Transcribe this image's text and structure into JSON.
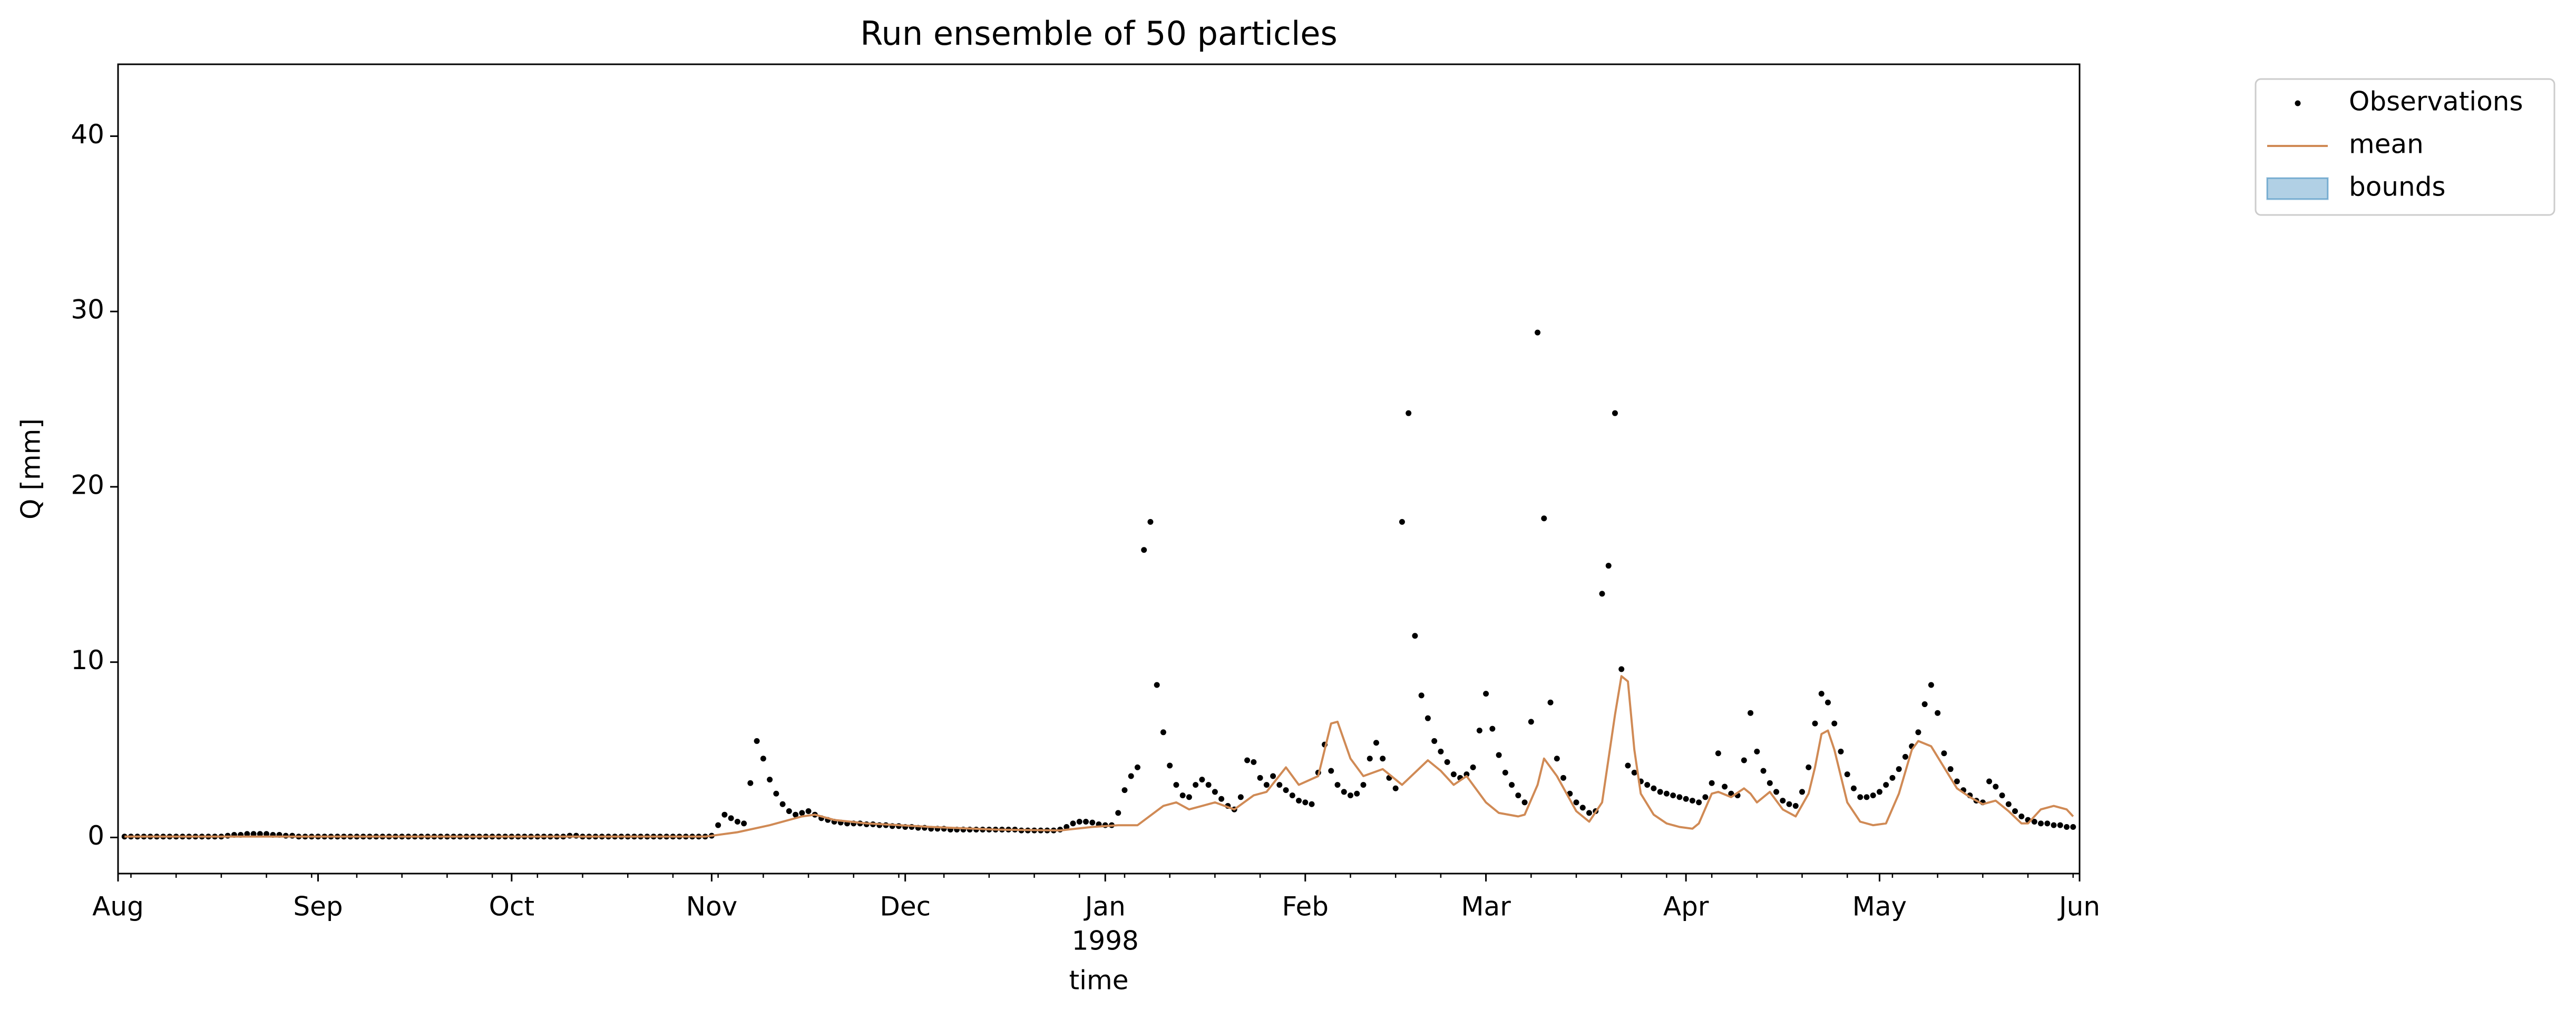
{
  "chart_data": {
    "type": "line",
    "title": "Run ensemble of 50 particles",
    "xlabel": "time",
    "ylabel": "Q [mm]",
    "x_year": "1998",
    "legend": "outside upper right",
    "xlim": [
      "1997-08-01",
      "1998-06-01"
    ],
    "xticks": [
      {
        "value": "1997-08-01",
        "label": "Aug"
      },
      {
        "value": "1997-09-01",
        "label": "Sep"
      },
      {
        "value": "1997-10-01",
        "label": "Oct"
      },
      {
        "value": "1997-11-01",
        "label": "Nov"
      },
      {
        "value": "1997-12-01",
        "label": "Dec"
      },
      {
        "value": "1998-01-01",
        "label": "Jan"
      },
      {
        "value": "1998-02-01",
        "label": "Feb"
      },
      {
        "value": "1998-03-01",
        "label": "Mar"
      },
      {
        "value": "1998-04-01",
        "label": "Apr"
      },
      {
        "value": "1998-05-01",
        "label": "May"
      },
      {
        "value": "1998-06-01",
        "label": "Jun"
      }
    ],
    "xminorticks": [
      "1997-08-03",
      "1997-08-10",
      "1997-08-17",
      "1997-08-24",
      "1997-08-31",
      "1997-09-07",
      "1997-09-14",
      "1997-09-21",
      "1997-09-28",
      "1997-10-05",
      "1997-10-12",
      "1997-10-19",
      "1997-10-26",
      "1997-11-02",
      "1997-11-09",
      "1997-11-16",
      "1997-11-23",
      "1997-11-30",
      "1997-12-07",
      "1997-12-14",
      "1997-12-21",
      "1997-12-28",
      "1998-01-04",
      "1998-01-11",
      "1998-01-18",
      "1998-01-25",
      "1998-02-01",
      "1998-02-08",
      "1998-02-15",
      "1998-02-22",
      "1998-03-01",
      "1998-03-08",
      "1998-03-15",
      "1998-03-22",
      "1998-03-29",
      "1998-04-05",
      "1998-04-12",
      "1998-04-19",
      "1998-04-26",
      "1998-05-03",
      "1998-05-10",
      "1998-05-17",
      "1998-05-24",
      "1998-05-31"
    ],
    "ylim": [
      -2.06,
      44.1
    ],
    "yticks": [
      0,
      10,
      20,
      30,
      40
    ],
    "series": [
      {
        "name": "Observations",
        "type": "scatter",
        "color": "#000000",
        "x": [
          "1997-08-02",
          "1997-08-03",
          "1997-08-04",
          "1997-08-05",
          "1997-08-06",
          "1997-08-07",
          "1997-08-08",
          "1997-08-09",
          "1997-08-10",
          "1997-08-11",
          "1997-08-12",
          "1997-08-13",
          "1997-08-14",
          "1997-08-15",
          "1997-08-16",
          "1997-08-17",
          "1997-08-18",
          "1997-08-19",
          "1997-08-20",
          "1997-08-21",
          "1997-08-22",
          "1997-08-23",
          "1997-08-24",
          "1997-08-25",
          "1997-08-26",
          "1997-08-27",
          "1997-08-28",
          "1997-08-29",
          "1997-08-30",
          "1997-08-31",
          "1997-09-01",
          "1997-09-02",
          "1997-09-03",
          "1997-09-04",
          "1997-09-05",
          "1997-09-06",
          "1997-09-07",
          "1997-09-08",
          "1997-09-09",
          "1997-09-10",
          "1997-09-11",
          "1997-09-12",
          "1997-09-13",
          "1997-09-14",
          "1997-09-15",
          "1997-09-16",
          "1997-09-17",
          "1997-09-18",
          "1997-09-19",
          "1997-09-20",
          "1997-09-21",
          "1997-09-22",
          "1997-09-23",
          "1997-09-24",
          "1997-09-25",
          "1997-09-26",
          "1997-09-27",
          "1997-09-28",
          "1997-09-29",
          "1997-09-30",
          "1997-10-01",
          "1997-10-02",
          "1997-10-03",
          "1997-10-04",
          "1997-10-05",
          "1997-10-06",
          "1997-10-07",
          "1997-10-08",
          "1997-10-09",
          "1997-10-10",
          "1997-10-11",
          "1997-10-12",
          "1997-10-13",
          "1997-10-14",
          "1997-10-15",
          "1997-10-16",
          "1997-10-17",
          "1997-10-18",
          "1997-10-19",
          "1997-10-20",
          "1997-10-21",
          "1997-10-22",
          "1997-10-23",
          "1997-10-24",
          "1997-10-25",
          "1997-10-26",
          "1997-10-27",
          "1997-10-28",
          "1997-10-29",
          "1997-10-30",
          "1997-10-31",
          "1997-11-01",
          "1997-11-02",
          "1997-11-03",
          "1997-11-04",
          "1997-11-05",
          "1997-11-06",
          "1997-11-07",
          "1997-11-08",
          "1997-11-09",
          "1997-11-10",
          "1997-11-11",
          "1997-11-12",
          "1997-11-13",
          "1997-11-14",
          "1997-11-15",
          "1997-11-16",
          "1997-11-17",
          "1997-11-18",
          "1997-11-19",
          "1997-11-20",
          "1997-11-21",
          "1997-11-22",
          "1997-11-23",
          "1997-11-24",
          "1997-11-25",
          "1997-11-26",
          "1997-11-27",
          "1997-11-28",
          "1997-11-29",
          "1997-11-30",
          "1997-12-01",
          "1997-12-02",
          "1997-12-03",
          "1997-12-04",
          "1997-12-05",
          "1997-12-06",
          "1997-12-07",
          "1997-12-08",
          "1997-12-09",
          "1997-12-10",
          "1997-12-11",
          "1997-12-12",
          "1997-12-13",
          "1997-12-14",
          "1997-12-15",
          "1997-12-16",
          "1997-12-17",
          "1997-12-18",
          "1997-12-19",
          "1997-12-20",
          "1997-12-21",
          "1997-12-22",
          "1997-12-23",
          "1997-12-24",
          "1997-12-25",
          "1997-12-26",
          "1997-12-27",
          "1997-12-28",
          "1997-12-29",
          "1997-12-30",
          "1997-12-31",
          "1998-01-01",
          "1998-01-02",
          "1998-01-03",
          "1998-01-04",
          "1998-01-05",
          "1998-01-06",
          "1998-01-07",
          "1998-01-08",
          "1998-01-09",
          "1998-01-10",
          "1998-01-11",
          "1998-01-12",
          "1998-01-13",
          "1998-01-14",
          "1998-01-15",
          "1998-01-16",
          "1998-01-17",
          "1998-01-18",
          "1998-01-19",
          "1998-01-20",
          "1998-01-21",
          "1998-01-22",
          "1998-01-23",
          "1998-01-24",
          "1998-01-25",
          "1998-01-26",
          "1998-01-27",
          "1998-01-28",
          "1998-01-29",
          "1998-01-30",
          "1998-01-31",
          "1998-02-01",
          "1998-02-02",
          "1998-02-03",
          "1998-02-04",
          "1998-02-05",
          "1998-02-06",
          "1998-02-07",
          "1998-02-08",
          "1998-02-09",
          "1998-02-10",
          "1998-02-11",
          "1998-02-12",
          "1998-02-13",
          "1998-02-14",
          "1998-02-15",
          "1998-02-16",
          "1998-02-17",
          "1998-02-18",
          "1998-02-19",
          "1998-02-20",
          "1998-02-21",
          "1998-02-22",
          "1998-02-23",
          "1998-02-24",
          "1998-02-25",
          "1998-02-26",
          "1998-02-27",
          "1998-02-28",
          "1998-03-01",
          "1998-03-02",
          "1998-03-03",
          "1998-03-04",
          "1998-03-05",
          "1998-03-06",
          "1998-03-07",
          "1998-03-08",
          "1998-03-09",
          "1998-03-10",
          "1998-03-11",
          "1998-03-12",
          "1998-03-13",
          "1998-03-14",
          "1998-03-15",
          "1998-03-16",
          "1998-03-17",
          "1998-03-18",
          "1998-03-19",
          "1998-03-20",
          "1998-03-21",
          "1998-03-22",
          "1998-03-23",
          "1998-03-24",
          "1998-03-25",
          "1998-03-26",
          "1998-03-27",
          "1998-03-28",
          "1998-03-29",
          "1998-03-30",
          "1998-03-31",
          "1998-04-01",
          "1998-04-02",
          "1998-04-03",
          "1998-04-04",
          "1998-04-05",
          "1998-04-06",
          "1998-04-07",
          "1998-04-08",
          "1998-04-09",
          "1998-04-10",
          "1998-04-11",
          "1998-04-12",
          "1998-04-13",
          "1998-04-14",
          "1998-04-15",
          "1998-04-16",
          "1998-04-17",
          "1998-04-18",
          "1998-04-19",
          "1998-04-20",
          "1998-04-21",
          "1998-04-22",
          "1998-04-23",
          "1998-04-24",
          "1998-04-25",
          "1998-04-26",
          "1998-04-27",
          "1998-04-28",
          "1998-04-29",
          "1998-04-30",
          "1998-05-01",
          "1998-05-02",
          "1998-05-03",
          "1998-05-04",
          "1998-05-05",
          "1998-05-06",
          "1998-05-07",
          "1998-05-08",
          "1998-05-09",
          "1998-05-10",
          "1998-05-11",
          "1998-05-12",
          "1998-05-13",
          "1998-05-14",
          "1998-05-15",
          "1998-05-16",
          "1998-05-17",
          "1998-05-18",
          "1998-05-19",
          "1998-05-20",
          "1998-05-21",
          "1998-05-22",
          "1998-05-23",
          "1998-05-24",
          "1998-05-25",
          "1998-05-26",
          "1998-05-27",
          "1998-05-28",
          "1998-05-29",
          "1998-05-30",
          "1998-05-31"
        ],
        "values": [
          0.05,
          0.05,
          0.05,
          0.05,
          0.05,
          0.05,
          0.05,
          0.05,
          0.05,
          0.05,
          0.05,
          0.05,
          0.05,
          0.05,
          0.05,
          0.05,
          0.1,
          0.15,
          0.15,
          0.2,
          0.2,
          0.2,
          0.2,
          0.15,
          0.15,
          0.1,
          0.1,
          0.05,
          0.05,
          0.05,
          0.05,
          0.05,
          0.05,
          0.05,
          0.05,
          0.05,
          0.05,
          0.05,
          0.05,
          0.05,
          0.05,
          0.05,
          0.05,
          0.05,
          0.05,
          0.05,
          0.05,
          0.05,
          0.05,
          0.05,
          0.05,
          0.05,
          0.05,
          0.05,
          0.05,
          0.05,
          0.05,
          0.05,
          0.05,
          0.05,
          0.05,
          0.05,
          0.05,
          0.05,
          0.05,
          0.05,
          0.05,
          0.05,
          0.05,
          0.1,
          0.1,
          0.05,
          0.05,
          0.05,
          0.05,
          0.05,
          0.05,
          0.05,
          0.05,
          0.05,
          0.05,
          0.05,
          0.05,
          0.05,
          0.05,
          0.05,
          0.05,
          0.05,
          0.05,
          0.05,
          0.05,
          0.1,
          0.7,
          1.3,
          1.1,
          0.9,
          0.8,
          3.1,
          5.5,
          4.5,
          3.3,
          2.5,
          1.9,
          1.5,
          1.3,
          1.4,
          1.5,
          1.3,
          1.1,
          1.0,
          0.9,
          0.85,
          0.8,
          0.8,
          0.8,
          0.75,
          0.75,
          0.7,
          0.7,
          0.65,
          0.65,
          0.6,
          0.6,
          0.55,
          0.55,
          0.5,
          0.5,
          0.5,
          0.45,
          0.45,
          0.45,
          0.45,
          0.45,
          0.45,
          0.45,
          0.45,
          0.45,
          0.45,
          0.45,
          0.4,
          0.4,
          0.4,
          0.4,
          0.4,
          0.4,
          0.45,
          0.6,
          0.8,
          0.9,
          0.9,
          0.85,
          0.75,
          0.7,
          0.7,
          1.4,
          2.7,
          3.5,
          4.0,
          16.4,
          18.0,
          8.7,
          6.0,
          4.1,
          3.0,
          2.4,
          2.3,
          3.0,
          3.3,
          3.0,
          2.6,
          2.2,
          1.8,
          1.6,
          2.3,
          4.4,
          4.3,
          3.4,
          3.0,
          3.5,
          3.0,
          2.7,
          2.4,
          2.1,
          2.0,
          1.9,
          3.7,
          5.3,
          3.8,
          3.0,
          2.6,
          2.4,
          2.5,
          3.0,
          4.5,
          5.4,
          4.5,
          3.4,
          2.8,
          18.0,
          24.2,
          11.5,
          8.1,
          6.8,
          5.5,
          4.9,
          4.3,
          3.6,
          3.4,
          3.6,
          4.0,
          6.1,
          8.2,
          6.2,
          4.7,
          3.7,
          3.0,
          2.4,
          2.0,
          6.6,
          28.8,
          18.2,
          7.7,
          4.5,
          3.4,
          2.5,
          2.0,
          1.7,
          1.4,
          1.5,
          13.9,
          15.5,
          24.2,
          9.6,
          4.1,
          3.7,
          3.2,
          3.0,
          2.8,
          2.6,
          2.5,
          2.4,
          2.3,
          2.2,
          2.1,
          2.0,
          2.3,
          3.1,
          4.8,
          2.9,
          2.5,
          2.4,
          4.4,
          7.1,
          4.9,
          3.8,
          3.1,
          2.6,
          2.1,
          1.9,
          1.8,
          2.6,
          4.0,
          6.5,
          8.2,
          7.7,
          6.5,
          4.9,
          3.6,
          2.8,
          2.3,
          2.3,
          2.4,
          2.6,
          3.0,
          3.4,
          3.9,
          4.6,
          5.2,
          6.0,
          7.6,
          8.7,
          7.1,
          4.8,
          3.9,
          3.2,
          2.7,
          2.4,
          2.1,
          2.0,
          3.2,
          2.9,
          2.4,
          1.9,
          1.5,
          1.2,
          1.0,
          0.9,
          0.8,
          0.8,
          0.7,
          0.7,
          0.6,
          0.6
        ]
      },
      {
        "name": "mean",
        "type": "line",
        "color": "#d08a55",
        "x": [
          "1997-08-02",
          "1997-09-15",
          "1997-10-31",
          "1997-11-05",
          "1997-11-10",
          "1997-11-15",
          "1997-11-17",
          "1997-11-20",
          "1997-11-25",
          "1997-12-05",
          "1997-12-15",
          "1997-12-25",
          "1997-12-30",
          "1998-01-03",
          "1998-01-06",
          "1998-01-10",
          "1998-01-12",
          "1998-01-14",
          "1998-01-18",
          "1998-01-21",
          "1998-01-24",
          "1998-01-26",
          "1998-01-29",
          "1998-01-31",
          "1998-02-03",
          "1998-02-05",
          "1998-02-06",
          "1998-02-08",
          "1998-02-10",
          "1998-02-13",
          "1998-02-15",
          "1998-02-16",
          "1998-02-20",
          "1998-02-22",
          "1998-02-24",
          "1998-02-26",
          "1998-03-01",
          "1998-03-03",
          "1998-03-06",
          "1998-03-07",
          "1998-03-09",
          "1998-03-10",
          "1998-03-12",
          "1998-03-15",
          "1998-03-17",
          "1998-03-19",
          "1998-03-21",
          "1998-03-22",
          "1998-03-23",
          "1998-03-24",
          "1998-03-25",
          "1998-03-27",
          "1998-03-29",
          "1998-03-31",
          "1998-04-02",
          "1998-04-03",
          "1998-04-05",
          "1998-04-06",
          "1998-04-08",
          "1998-04-10",
          "1998-04-11",
          "1998-04-12",
          "1998-04-14",
          "1998-04-16",
          "1998-04-18",
          "1998-04-20",
          "1998-04-21",
          "1998-04-22",
          "1998-04-23",
          "1998-04-24",
          "1998-04-26",
          "1998-04-28",
          "1998-04-30",
          "1998-05-02",
          "1998-05-04",
          "1998-05-06",
          "1998-05-07",
          "1998-05-09",
          "1998-05-11",
          "1998-05-13",
          "1998-05-15",
          "1998-05-17",
          "1998-05-19",
          "1998-05-21",
          "1998-05-23",
          "1998-05-24",
          "1998-05-26",
          "1998-05-28",
          "1998-05-30",
          "1998-05-31"
        ],
        "values": [
          0.05,
          0.05,
          0.05,
          0.3,
          0.7,
          1.2,
          1.3,
          1.0,
          0.8,
          0.6,
          0.45,
          0.4,
          0.6,
          0.7,
          0.7,
          1.8,
          2.0,
          1.6,
          2.0,
          1.6,
          2.4,
          2.6,
          4.0,
          3.0,
          3.5,
          6.5,
          6.6,
          4.5,
          3.5,
          3.9,
          3.3,
          3.0,
          4.4,
          3.8,
          3.0,
          3.5,
          2.0,
          1.4,
          1.2,
          1.3,
          3.0,
          4.5,
          3.5,
          1.5,
          0.9,
          2.0,
          7.0,
          9.2,
          8.9,
          5.0,
          2.5,
          1.3,
          0.8,
          0.6,
          0.5,
          0.8,
          2.5,
          2.6,
          2.3,
          2.8,
          2.5,
          2.0,
          2.6,
          1.6,
          1.2,
          2.5,
          4.0,
          5.9,
          6.1,
          5.0,
          2.0,
          0.9,
          0.7,
          0.8,
          2.5,
          5.0,
          5.5,
          5.2,
          4.0,
          2.8,
          2.3,
          1.9,
          2.1,
          1.5,
          0.8,
          0.8,
          1.6,
          1.8,
          1.6,
          1.2
        ]
      },
      {
        "name": "bounds",
        "type": "area",
        "color": "#1f77b4"
      }
    ]
  }
}
